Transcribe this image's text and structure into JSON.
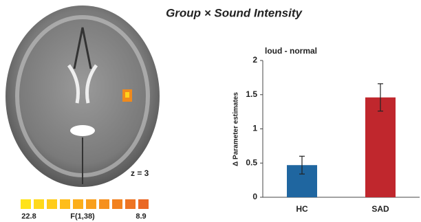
{
  "chart_data": {
    "type": "bar",
    "title": "Group × Sound Intensity",
    "subtitle": "loud - normal",
    "y_label": "Δ Parameter estimates",
    "categories": [
      "HC",
      "SAD"
    ],
    "values": [
      0.47,
      1.46
    ],
    "errors": [
      0.13,
      0.2
    ],
    "colors": [
      "#1f66a0",
      "#c0272d"
    ],
    "ylim": [
      0,
      2
    ],
    "yticks": [
      0,
      0.5,
      1,
      1.5,
      2
    ],
    "grid": false
  },
  "brain_panel": {
    "slice_label": "z = 3",
    "colorbar_max": "22.8",
    "colorbar_title": "F(1,38)",
    "colorbar_min": "8.9"
  }
}
